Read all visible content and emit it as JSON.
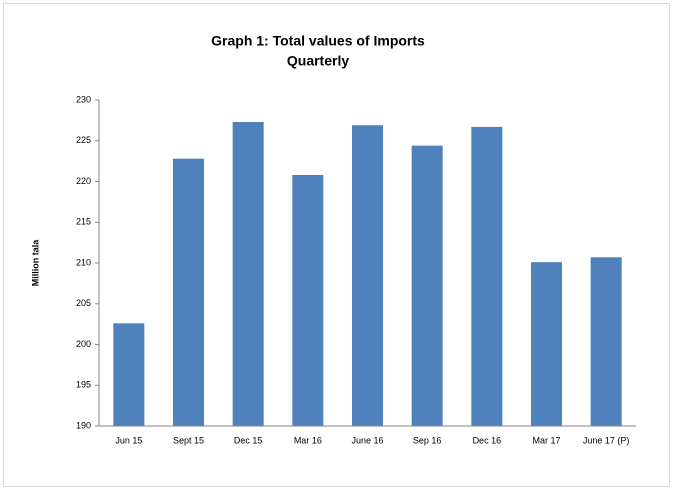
{
  "chart_data": {
    "type": "bar",
    "title": [
      "Graph 1: Total values of Imports",
      "Quarterly"
    ],
    "y_label": "Million tala",
    "categories": [
      "Jun 15",
      "Sept 15",
      "Dec 15",
      "Mar 16",
      "June 16",
      "Sep 16",
      "Dec 16",
      "Mar 17",
      "June 17 (P)"
    ],
    "values": [
      202.6,
      222.8,
      227.3,
      220.8,
      226.9,
      224.4,
      226.7,
      210.1,
      210.7
    ],
    "color": "#4f81bd",
    "ylim": [
      190,
      230
    ],
    "yticks": [
      190,
      195,
      200,
      205,
      210,
      215,
      220,
      225,
      230
    ],
    "grid": false
  }
}
